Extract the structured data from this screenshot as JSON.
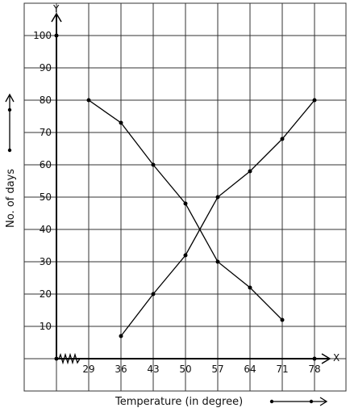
{
  "chart_data": {
    "type": "line",
    "title": "",
    "xlabel": "Temperature (in degree)",
    "ylabel": "No. of days",
    "x_axis_letter": "X",
    "y_axis_letter": "Y",
    "x_ticks": [
      "29",
      "36",
      "43",
      "50",
      "57",
      "64",
      "71",
      "78"
    ],
    "y_ticks": [
      "10",
      "20",
      "30",
      "40",
      "50",
      "60",
      "70",
      "80",
      "90",
      "100"
    ],
    "xlim": [
      22,
      78
    ],
    "ylim": [
      0,
      100
    ],
    "axis_break": "zig-zag on x-axis between 22 and 29",
    "grid": true,
    "series": [
      {
        "x": [
          29,
          36,
          43,
          50,
          57,
          64,
          71
        ],
        "y": [
          80,
          73,
          60,
          48,
          30,
          22,
          12
        ],
        "color": "#000000"
      },
      {
        "x": [
          36,
          43,
          50,
          57,
          64,
          71,
          78
        ],
        "y": [
          7,
          20,
          32,
          50,
          58,
          68,
          80
        ],
        "color": "#000000"
      }
    ]
  }
}
